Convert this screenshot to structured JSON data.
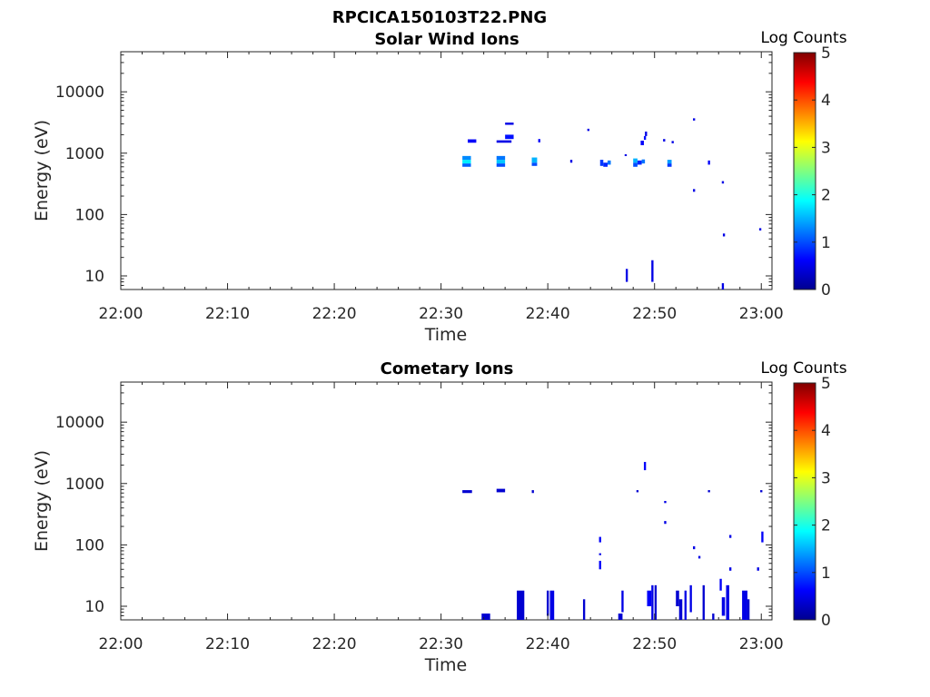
{
  "figure": {
    "title": "RPCICA150103T22.PNG",
    "colorbar_label": "Log Counts",
    "colorbar_ticks": [
      "0",
      "1",
      "2",
      "3",
      "4",
      "5"
    ],
    "colorbar_range": [
      0,
      5
    ],
    "colormap": "jet"
  },
  "chart_data": [
    {
      "type": "heatmap",
      "title": "Solar Wind Ions",
      "xlabel": "Time",
      "ylabel": "Energy (eV)",
      "x_ticks": [
        "22:00",
        "22:10",
        "22:20",
        "22:30",
        "22:40",
        "22:50",
        "23:00"
      ],
      "x_tick_minutes": [
        0,
        10,
        20,
        30,
        40,
        50,
        60
      ],
      "xlim_minutes": [
        0,
        61
      ],
      "y_ticks": [
        "10",
        "100",
        "1000",
        "10000"
      ],
      "y_tick_values": [
        10,
        100,
        1000,
        10000
      ],
      "ylim": [
        6,
        45000
      ],
      "y_scale": "log",
      "cells": [
        {
          "t": 32.0,
          "t2": 32.8,
          "e": 600,
          "e2": 680,
          "c": 1.1
        },
        {
          "t": 32.0,
          "t2": 32.8,
          "e": 680,
          "e2": 780,
          "c": 1.8
        },
        {
          "t": 32.0,
          "t2": 32.8,
          "e": 780,
          "e2": 900,
          "c": 1.3
        },
        {
          "t": 32.5,
          "t2": 33.3,
          "e": 1480,
          "e2": 1680,
          "c": 0.6
        },
        {
          "t": 35.2,
          "t2": 36.0,
          "e": 600,
          "e2": 680,
          "c": 1.0
        },
        {
          "t": 35.2,
          "t2": 36.0,
          "e": 680,
          "e2": 780,
          "c": 1.6
        },
        {
          "t": 35.2,
          "t2": 36.0,
          "e": 780,
          "e2": 900,
          "c": 1.2
        },
        {
          "t": 35.2,
          "t2": 36.6,
          "e": 1480,
          "e2": 1620,
          "c": 0.5
        },
        {
          "t": 36.0,
          "t2": 36.8,
          "e": 1700,
          "e2": 2000,
          "c": 0.7
        },
        {
          "t": 36.0,
          "t2": 36.8,
          "e": 2900,
          "e2": 3150,
          "c": 0.5
        },
        {
          "t": 38.5,
          "t2": 39.0,
          "e": 620,
          "e2": 700,
          "c": 1.0
        },
        {
          "t": 38.5,
          "t2": 39.0,
          "e": 700,
          "e2": 850,
          "c": 1.5
        },
        {
          "t": 39.1,
          "t2": 39.3,
          "e": 1500,
          "e2": 1700,
          "c": 0.6
        },
        {
          "t": 42.1,
          "t2": 42.3,
          "e": 700,
          "e2": 780,
          "c": 0.5
        },
        {
          "t": 43.7,
          "t2": 43.9,
          "e": 2300,
          "e2": 2500,
          "c": 0.5
        },
        {
          "t": 44.9,
          "t2": 45.2,
          "e": 620,
          "e2": 780,
          "c": 0.9
        },
        {
          "t": 45.2,
          "t2": 45.6,
          "e": 600,
          "e2": 700,
          "c": 0.8
        },
        {
          "t": 45.6,
          "t2": 45.9,
          "e": 650,
          "e2": 760,
          "c": 1.2
        },
        {
          "t": 47.2,
          "t2": 47.4,
          "e": 900,
          "e2": 960,
          "c": 0.5
        },
        {
          "t": 47.3,
          "t2": 47.5,
          "e": 8,
          "e2": 13,
          "c": 0.5
        },
        {
          "t": 48.0,
          "t2": 48.4,
          "e": 600,
          "e2": 700,
          "c": 1.0
        },
        {
          "t": 48.0,
          "t2": 48.4,
          "e": 700,
          "e2": 820,
          "c": 1.5
        },
        {
          "t": 48.4,
          "t2": 48.8,
          "e": 650,
          "e2": 760,
          "c": 0.8
        },
        {
          "t": 48.8,
          "t2": 49.1,
          "e": 680,
          "e2": 790,
          "c": 1.2
        },
        {
          "t": 48.7,
          "t2": 49.0,
          "e": 1350,
          "e2": 1600,
          "c": 0.6
        },
        {
          "t": 49.0,
          "t2": 49.2,
          "e": 1650,
          "e2": 1900,
          "c": 0.7
        },
        {
          "t": 49.1,
          "t2": 49.3,
          "e": 1900,
          "e2": 2250,
          "c": 0.5
        },
        {
          "t": 49.7,
          "t2": 49.9,
          "e": 8,
          "e2": 18,
          "c": 0.5
        },
        {
          "t": 50.8,
          "t2": 51.0,
          "e": 1550,
          "e2": 1700,
          "c": 0.5
        },
        {
          "t": 51.2,
          "t2": 51.6,
          "e": 600,
          "e2": 680,
          "c": 0.9
        },
        {
          "t": 51.2,
          "t2": 51.6,
          "e": 680,
          "e2": 780,
          "c": 1.4
        },
        {
          "t": 51.6,
          "t2": 51.8,
          "e": 1450,
          "e2": 1580,
          "c": 0.5
        },
        {
          "t": 53.6,
          "t2": 53.8,
          "e": 3400,
          "e2": 3700,
          "c": 0.5
        },
        {
          "t": 53.6,
          "t2": 53.8,
          "e": 235,
          "e2": 260,
          "c": 0.5
        },
        {
          "t": 55.0,
          "t2": 55.2,
          "e": 650,
          "e2": 760,
          "c": 0.6
        },
        {
          "t": 56.3,
          "t2": 56.5,
          "e": 320,
          "e2": 350,
          "c": 0.5
        },
        {
          "t": 56.4,
          "t2": 56.6,
          "e": 44,
          "e2": 49,
          "c": 0.5
        },
        {
          "t": 56.3,
          "t2": 56.5,
          "e": 6,
          "e2": 7.6,
          "c": 0.5
        },
        {
          "t": 59.8,
          "t2": 60.0,
          "e": 55,
          "e2": 60,
          "c": 0.5
        }
      ]
    },
    {
      "type": "heatmap",
      "title": "Cometary Ions",
      "xlabel": "Time",
      "ylabel": "Energy (eV)",
      "x_ticks": [
        "22:00",
        "22:10",
        "22:20",
        "22:30",
        "22:40",
        "22:50",
        "23:00"
      ],
      "x_tick_minutes": [
        0,
        10,
        20,
        30,
        40,
        50,
        60
      ],
      "xlim_minutes": [
        0,
        61
      ],
      "y_ticks": [
        "10",
        "100",
        "1000",
        "10000"
      ],
      "y_tick_values": [
        10,
        100,
        1000,
        10000
      ],
      "ylim": [
        6,
        45000
      ],
      "y_scale": "log",
      "cells": [
        {
          "t": 32.0,
          "t2": 32.9,
          "e": 700,
          "e2": 780,
          "c": 0.4
        },
        {
          "t": 35.2,
          "t2": 36.0,
          "e": 720,
          "e2": 820,
          "c": 0.4
        },
        {
          "t": 38.5,
          "t2": 38.7,
          "e": 700,
          "e2": 780,
          "c": 0.4
        },
        {
          "t": 33.8,
          "t2": 34.6,
          "e": 6,
          "e2": 7.6,
          "c": 0.4
        },
        {
          "t": 37.1,
          "t2": 37.8,
          "e": 6,
          "e2": 18,
          "c": 0.4
        },
        {
          "t": 39.9,
          "t2": 40.1,
          "e": 7,
          "e2": 18,
          "c": 0.4
        },
        {
          "t": 40.2,
          "t2": 40.6,
          "e": 6,
          "e2": 18,
          "c": 0.5
        },
        {
          "t": 43.3,
          "t2": 43.5,
          "e": 6,
          "e2": 13,
          "c": 0.4
        },
        {
          "t": 44.8,
          "t2": 45.0,
          "e": 40,
          "e2": 55,
          "c": 0.6
        },
        {
          "t": 44.8,
          "t2": 45.0,
          "e": 68,
          "e2": 73,
          "c": 0.5
        },
        {
          "t": 44.8,
          "t2": 45.0,
          "e": 110,
          "e2": 135,
          "c": 0.6
        },
        {
          "t": 46.6,
          "t2": 47.0,
          "e": 6,
          "e2": 7.6,
          "c": 0.4
        },
        {
          "t": 46.9,
          "t2": 47.1,
          "e": 8,
          "e2": 18,
          "c": 0.5
        },
        {
          "t": 48.3,
          "t2": 48.5,
          "e": 720,
          "e2": 780,
          "c": 0.4
        },
        {
          "t": 49.0,
          "t2": 49.2,
          "e": 1650,
          "e2": 2250,
          "c": 0.6
        },
        {
          "t": 49.3,
          "t2": 49.7,
          "e": 10,
          "e2": 18,
          "c": 0.6
        },
        {
          "t": 49.7,
          "t2": 49.9,
          "e": 6,
          "e2": 22,
          "c": 0.5
        },
        {
          "t": 50.0,
          "t2": 50.2,
          "e": 6,
          "e2": 22,
          "c": 0.4
        },
        {
          "t": 50.9,
          "t2": 51.1,
          "e": 480,
          "e2": 520,
          "c": 0.5
        },
        {
          "t": 50.9,
          "t2": 51.1,
          "e": 220,
          "e2": 245,
          "c": 0.5
        },
        {
          "t": 52.0,
          "t2": 52.3,
          "e": 10,
          "e2": 18,
          "c": 0.4
        },
        {
          "t": 52.3,
          "t2": 52.6,
          "e": 6,
          "e2": 13,
          "c": 0.4
        },
        {
          "t": 52.8,
          "t2": 53.0,
          "e": 6,
          "e2": 18,
          "c": 0.5
        },
        {
          "t": 53.3,
          "t2": 53.5,
          "e": 8,
          "e2": 22,
          "c": 0.5
        },
        {
          "t": 53.6,
          "t2": 53.8,
          "e": 85,
          "e2": 95,
          "c": 0.5
        },
        {
          "t": 54.1,
          "t2": 54.3,
          "e": 60,
          "e2": 66,
          "c": 0.5
        },
        {
          "t": 54.5,
          "t2": 54.7,
          "e": 6,
          "e2": 22,
          "c": 0.4
        },
        {
          "t": 55.0,
          "t2": 55.2,
          "e": 720,
          "e2": 780,
          "c": 0.4
        },
        {
          "t": 55.4,
          "t2": 55.6,
          "e": 6,
          "e2": 7.6,
          "c": 0.4
        },
        {
          "t": 56.1,
          "t2": 56.3,
          "e": 18,
          "e2": 28,
          "c": 0.6
        },
        {
          "t": 56.3,
          "t2": 56.6,
          "e": 7,
          "e2": 14,
          "c": 0.5
        },
        {
          "t": 56.7,
          "t2": 57.0,
          "e": 6,
          "e2": 22,
          "c": 0.5
        },
        {
          "t": 57.0,
          "t2": 57.2,
          "e": 130,
          "e2": 145,
          "c": 0.5
        },
        {
          "t": 57.0,
          "t2": 57.2,
          "e": 38,
          "e2": 43,
          "c": 0.5
        },
        {
          "t": 58.2,
          "t2": 58.7,
          "e": 6,
          "e2": 18,
          "c": 0.5
        },
        {
          "t": 58.7,
          "t2": 58.9,
          "e": 6,
          "e2": 13,
          "c": 0.4
        },
        {
          "t": 59.6,
          "t2": 59.8,
          "e": 38,
          "e2": 43,
          "c": 0.5
        },
        {
          "t": 59.9,
          "t2": 60.1,
          "e": 720,
          "e2": 780,
          "c": 0.4
        },
        {
          "t": 60.0,
          "t2": 60.2,
          "e": 110,
          "e2": 165,
          "c": 0.6
        }
      ]
    }
  ]
}
